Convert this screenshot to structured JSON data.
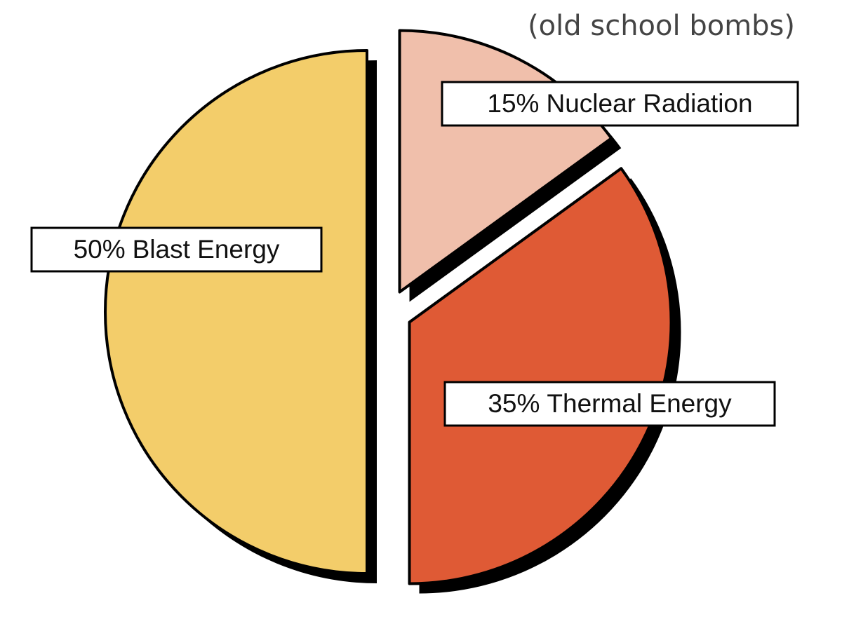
{
  "chart_data": {
    "type": "pie",
    "title": "(old school bombs)",
    "categories": [
      "Nuclear Radiation",
      "Thermal Energy",
      "Blast Energy"
    ],
    "values": [
      15,
      35,
      50
    ],
    "value_labels": [
      "15%",
      "35%",
      "50%"
    ],
    "colors": [
      "#f0bfab",
      "#df5a35",
      "#f3cd6a"
    ]
  }
}
